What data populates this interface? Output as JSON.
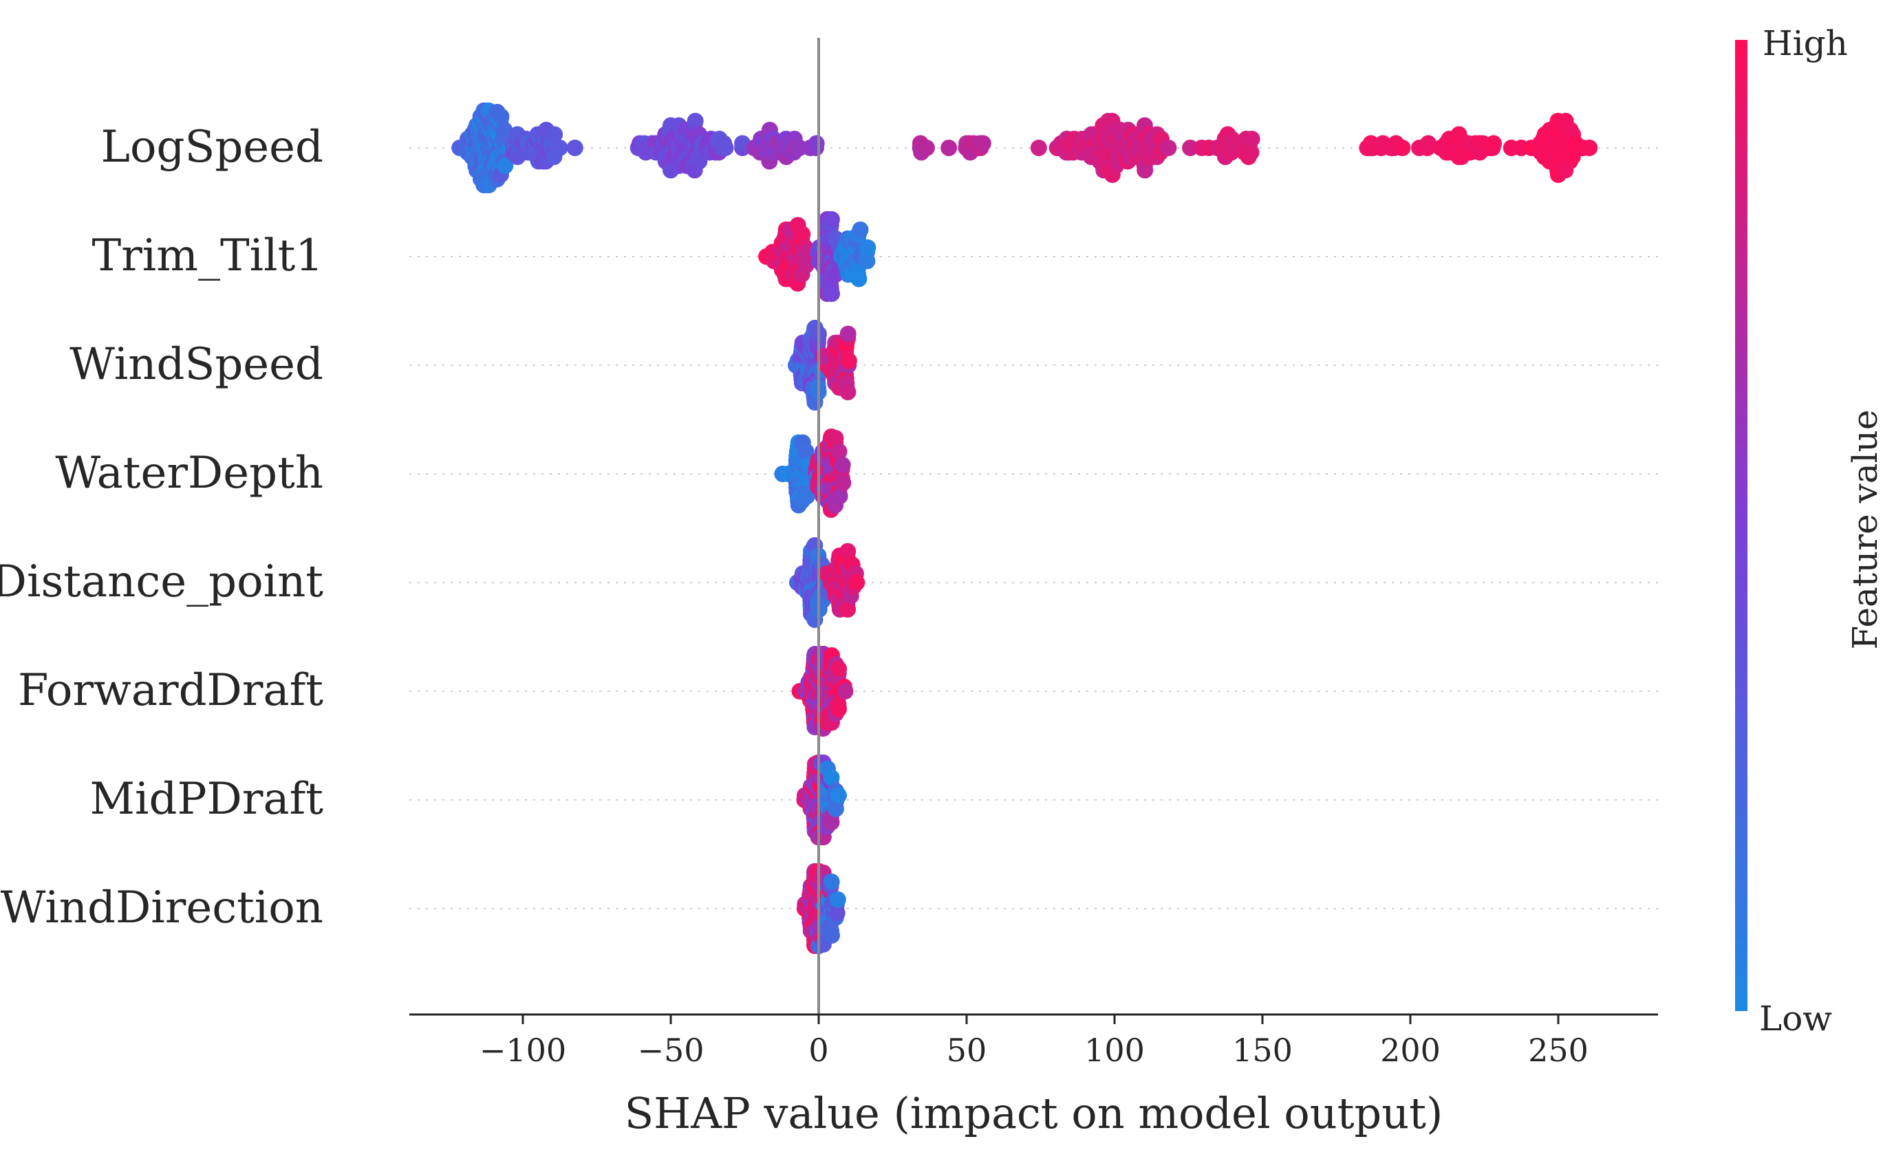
{
  "chart_data": {
    "type": "scatter",
    "subtype": "shap-beeswarm",
    "title": "",
    "xlabel": "SHAP value (impact on model output)",
    "ylabel": "",
    "xlim": [
      -140,
      280
    ],
    "xticks": [
      -100,
      -50,
      0,
      50,
      100,
      150,
      200,
      250
    ],
    "xtick_labels": [
      "−100",
      "−50",
      "0",
      "50",
      "100",
      "150",
      "200",
      "250"
    ],
    "grid": false,
    "colorbar": {
      "title": "Feature value",
      "high_label": "High",
      "low_label": "Low",
      "low_color": "#1e88e5",
      "high_color": "#ff0d57"
    },
    "features": [
      {
        "name": "LogSpeed",
        "clusters": [
          {
            "center": -112,
            "spread": 7,
            "count": 140,
            "fv_min": 0.0,
            "fv_max": 0.3
          },
          {
            "center": -95,
            "spread": 9,
            "count": 50,
            "fv_min": 0.25,
            "fv_max": 0.45
          },
          {
            "center": -45,
            "spread": 12,
            "count": 110,
            "fv_min": 0.35,
            "fv_max": 0.55
          },
          {
            "center": -12,
            "spread": 10,
            "count": 40,
            "fv_min": 0.5,
            "fv_max": 0.65
          },
          {
            "center": 35,
            "spread": 3,
            "count": 4,
            "fv_min": 0.7,
            "fv_max": 0.75
          },
          {
            "center": 52,
            "spread": 5,
            "count": 12,
            "fv_min": 0.72,
            "fv_max": 0.8
          },
          {
            "center": 100,
            "spread": 16,
            "count": 160,
            "fv_min": 0.78,
            "fv_max": 0.9
          },
          {
            "center": 140,
            "spread": 10,
            "count": 30,
            "fv_min": 0.85,
            "fv_max": 0.92
          },
          {
            "center": 188,
            "spread": 8,
            "count": 10,
            "fv_min": 0.92,
            "fv_max": 0.97
          },
          {
            "center": 218,
            "spread": 12,
            "count": 40,
            "fv_min": 0.93,
            "fv_max": 0.98
          },
          {
            "center": 250,
            "spread": 8,
            "count": 80,
            "fv_min": 0.95,
            "fv_max": 1.0
          }
        ]
      },
      {
        "name": "Trim_Tilt1",
        "clusters": [
          {
            "center": -10,
            "spread": 6,
            "count": 80,
            "fv_min": 0.75,
            "fv_max": 1.0
          },
          {
            "center": 3,
            "spread": 3,
            "count": 60,
            "fv_min": 0.3,
            "fv_max": 0.6
          },
          {
            "center": 12,
            "spread": 5,
            "count": 45,
            "fv_min": 0.0,
            "fv_max": 0.2
          }
        ]
      },
      {
        "name": "WindSpeed",
        "clusters": [
          {
            "center": -3,
            "spread": 4,
            "count": 70,
            "fv_min": 0.1,
            "fv_max": 0.5
          },
          {
            "center": 7,
            "spread": 4,
            "count": 55,
            "fv_min": 0.7,
            "fv_max": 1.0
          }
        ]
      },
      {
        "name": "WaterDepth",
        "clusters": [
          {
            "center": -6,
            "spread": 4,
            "count": 50,
            "fv_min": 0.0,
            "fv_max": 0.2
          },
          {
            "center": 4,
            "spread": 4,
            "count": 80,
            "fv_min": 0.5,
            "fv_max": 1.0
          }
        ]
      },
      {
        "name": "Distance_point",
        "clusters": [
          {
            "center": -2,
            "spread": 4,
            "count": 70,
            "fv_min": 0.1,
            "fv_max": 0.45
          },
          {
            "center": 8,
            "spread": 4,
            "count": 60,
            "fv_min": 0.75,
            "fv_max": 1.0
          }
        ]
      },
      {
        "name": "ForwardDraft",
        "clusters": [
          {
            "center": 0,
            "spread": 4,
            "count": 80,
            "fv_min": 0.5,
            "fv_max": 1.0
          },
          {
            "center": 5,
            "spread": 4,
            "count": 40,
            "fv_min": 0.7,
            "fv_max": 1.0
          }
        ]
      },
      {
        "name": "MidPDraft",
        "clusters": [
          {
            "center": 0,
            "spread": 3,
            "count": 90,
            "fv_min": 0.4,
            "fv_max": 1.0
          },
          {
            "center": 4,
            "spread": 3,
            "count": 20,
            "fv_min": 0.0,
            "fv_max": 0.3
          }
        ]
      },
      {
        "name": "WindDirection",
        "clusters": [
          {
            "center": -1,
            "spread": 3,
            "count": 80,
            "fv_min": 0.6,
            "fv_max": 1.0
          },
          {
            "center": 4,
            "spread": 3,
            "count": 30,
            "fv_min": 0.0,
            "fv_max": 0.4
          }
        ]
      }
    ]
  }
}
